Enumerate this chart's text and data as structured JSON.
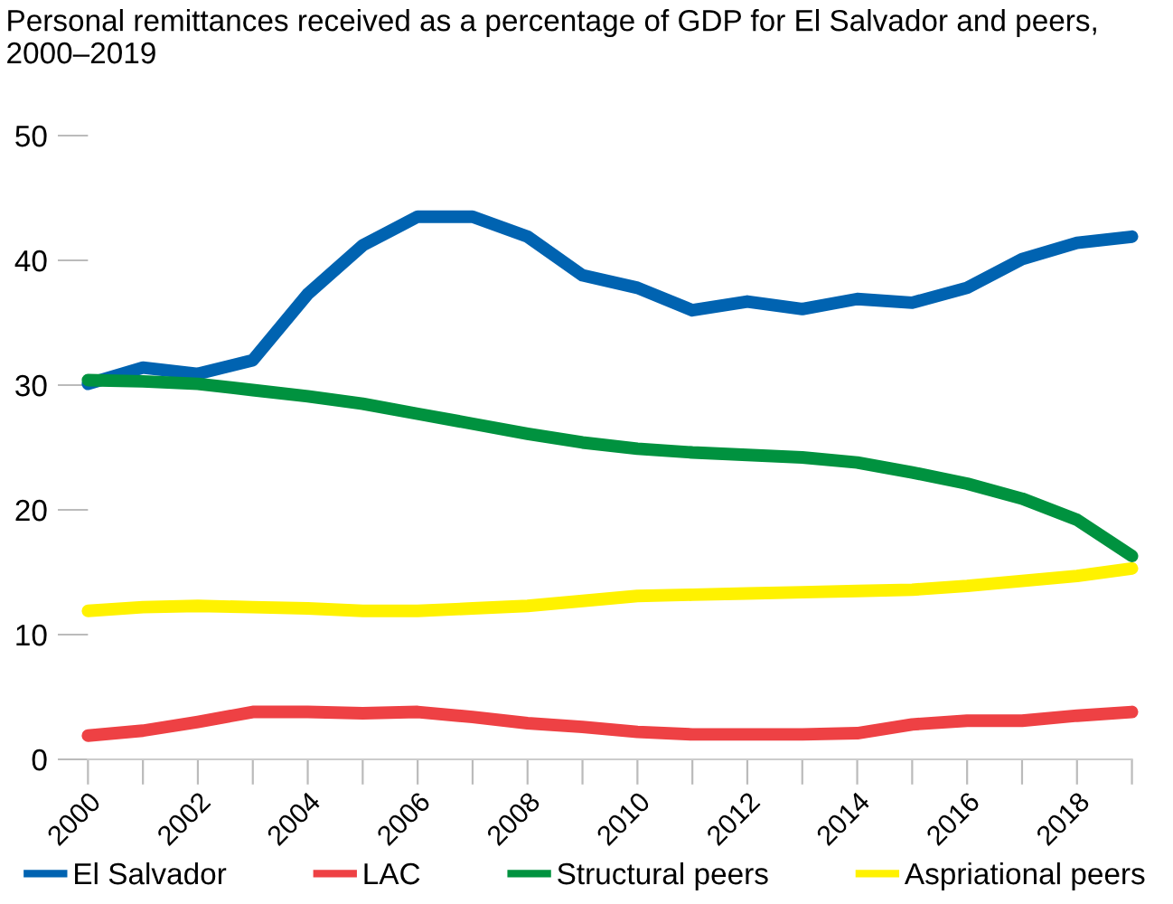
{
  "chart_data": {
    "type": "line",
    "title": "Personal remittances received as a percentage of GDP for El Salvador and peers, 2000–2019",
    "x": [
      2000,
      2001,
      2002,
      2003,
      2004,
      2005,
      2006,
      2007,
      2008,
      2009,
      2010,
      2011,
      2012,
      2013,
      2014,
      2015,
      2016,
      2017,
      2018,
      2019
    ],
    "series": [
      {
        "name": "El Salvador",
        "color": "#0063b1",
        "values": [
          30.1,
          31.4,
          30.9,
          32.0,
          37.3,
          41.2,
          43.5,
          43.5,
          41.9,
          38.8,
          37.8,
          36.0,
          36.7,
          36.1,
          36.9,
          36.6,
          37.8,
          40.1,
          41.4,
          41.9
        ]
      },
      {
        "name": "LAC",
        "color": "#ee4144",
        "values": [
          1.9,
          2.3,
          3.0,
          3.8,
          3.8,
          3.7,
          3.8,
          3.4,
          2.9,
          2.6,
          2.2,
          2.0,
          2.0,
          2.0,
          2.1,
          2.8,
          3.1,
          3.1,
          3.5,
          3.8
        ]
      },
      {
        "name": "Structural peers",
        "color": "#00923f",
        "values": [
          30.4,
          30.3,
          30.1,
          29.6,
          29.1,
          28.5,
          27.7,
          26.9,
          26.1,
          25.4,
          24.9,
          24.6,
          24.4,
          24.2,
          23.8,
          23.0,
          22.1,
          20.9,
          19.2,
          16.3
        ]
      },
      {
        "name": "Aspriational peers",
        "color": "#fff200",
        "values": [
          11.9,
          12.2,
          12.3,
          12.2,
          12.1,
          11.9,
          11.9,
          12.1,
          12.3,
          12.7,
          13.1,
          13.2,
          13.3,
          13.4,
          13.5,
          13.6,
          13.9,
          14.3,
          14.7,
          15.3
        ]
      }
    ],
    "xticks": [
      2000,
      {
        "value": 2001,
        "label": null
      },
      2002,
      {
        "value": 2003,
        "label": null
      },
      2004,
      {
        "value": 2005,
        "label": null
      },
      2006,
      {
        "value": 2007,
        "label": null
      },
      2008,
      {
        "value": 2009,
        "label": null
      },
      2010,
      {
        "value": 2011,
        "label": null
      },
      2012,
      {
        "value": 2013,
        "label": null
      },
      2014,
      {
        "value": 2015,
        "label": null
      },
      2016,
      {
        "value": 2017,
        "label": null
      },
      2018,
      {
        "value": 2019,
        "label": null
      }
    ],
    "xlim": [
      2000,
      2019
    ],
    "ylim": [
      0,
      50
    ],
    "yticks": [
      0,
      10,
      20,
      30,
      40,
      50
    ],
    "grid": false,
    "legend": "bottom",
    "line_style": "solid",
    "marker": "none"
  }
}
